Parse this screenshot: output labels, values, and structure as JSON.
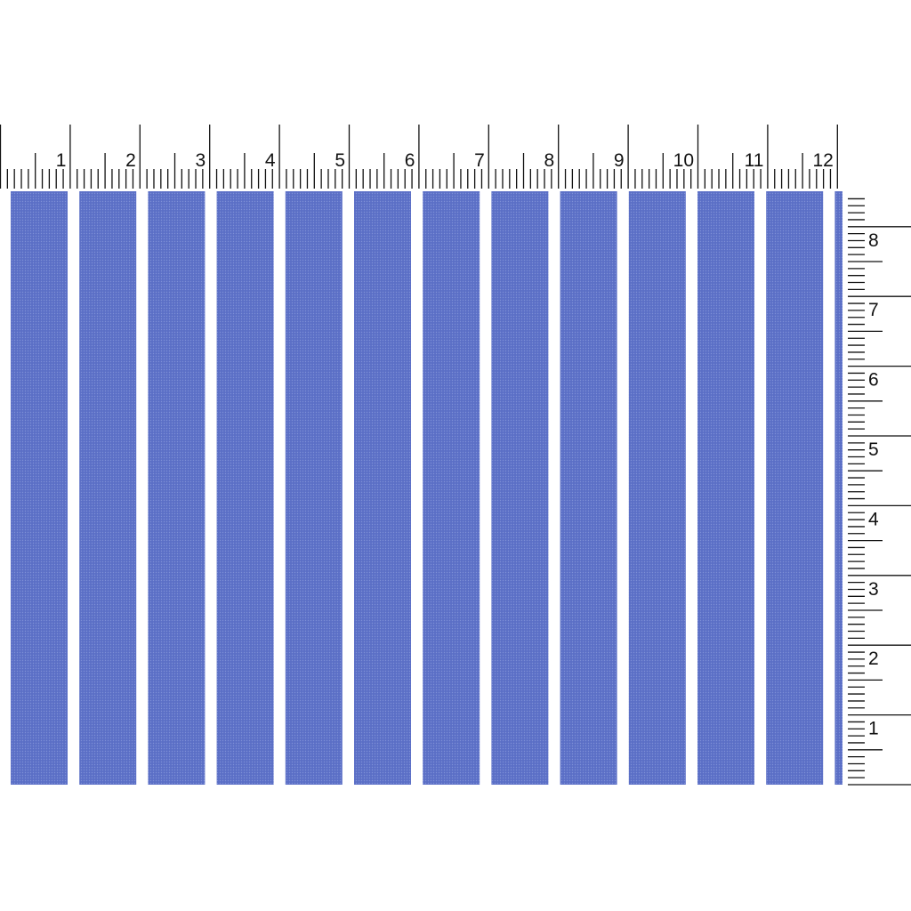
{
  "swatch": {
    "stripe_color": "#5b6fc6",
    "stripe_texture_color": "#7d8fd6",
    "background_color": "#ffffff",
    "stripe_count_visible": 13
  },
  "top_ruler": {
    "labels": [
      "1",
      "2",
      "3",
      "4",
      "5",
      "6",
      "7",
      "8",
      "9",
      "10",
      "11",
      "12"
    ]
  },
  "side_ruler": {
    "labels": [
      "1",
      "2",
      "3",
      "4",
      "5",
      "6",
      "7",
      "8"
    ]
  }
}
